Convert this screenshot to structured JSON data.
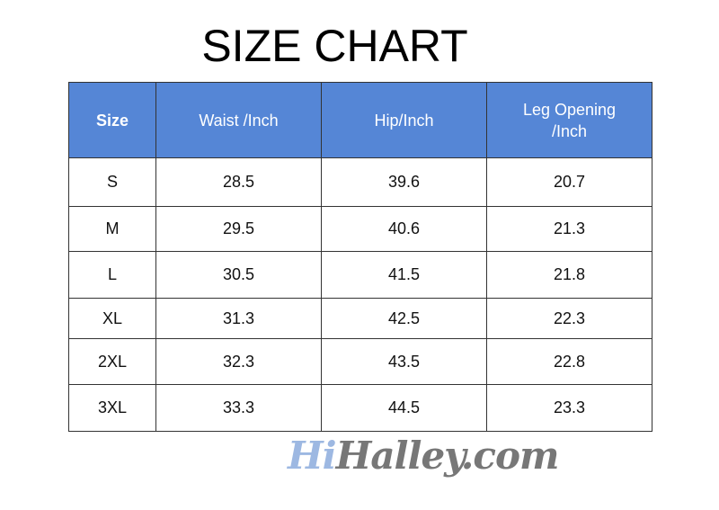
{
  "title": "SIZE CHART",
  "headers": [
    "Size",
    "Waist /Inch",
    "Hip/Inch",
    "Leg Opening /Inch"
  ],
  "rows": [
    [
      "S",
      "28.5",
      "39.6",
      "20.7"
    ],
    [
      "M",
      "29.5",
      "40.6",
      "21.3"
    ],
    [
      "L",
      "30.5",
      "41.5",
      "21.8"
    ],
    [
      "XL",
      "31.3",
      "42.5",
      "22.3"
    ],
    [
      "2XL",
      "32.3",
      "43.5",
      "22.8"
    ],
    [
      "3XL",
      "33.3",
      "44.5",
      "23.3"
    ]
  ],
  "watermark": {
    "part1": "Hi",
    "part2": "Halley.com"
  },
  "colors": {
    "header_bg": "#5586d6"
  }
}
